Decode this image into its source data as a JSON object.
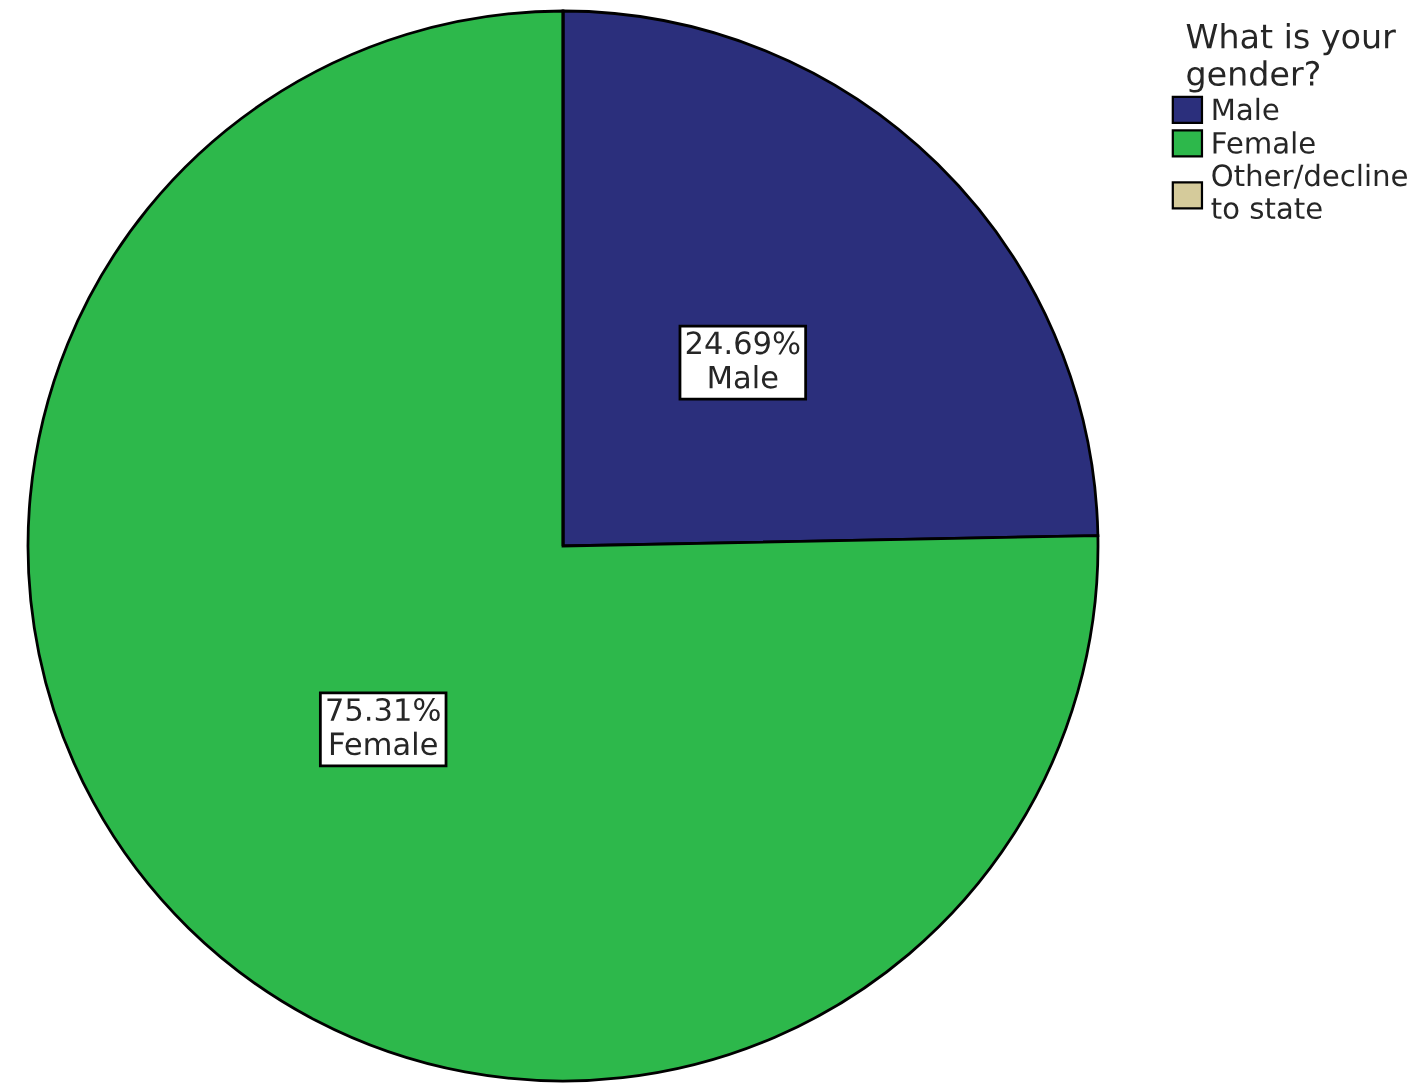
{
  "chart_data": {
    "type": "pie",
    "legend_title": "What is your\ngender?",
    "categories": [
      "Male",
      "Female",
      "Other/decline\nto state"
    ],
    "values": [
      24.69,
      75.31,
      0
    ],
    "colors": [
      "#2b2f7c",
      "#2db84b",
      "#d5cb9b"
    ],
    "value_labels": [
      "24.69%\nMale",
      "75.31%\nFemale",
      null
    ],
    "legend": "top right"
  }
}
